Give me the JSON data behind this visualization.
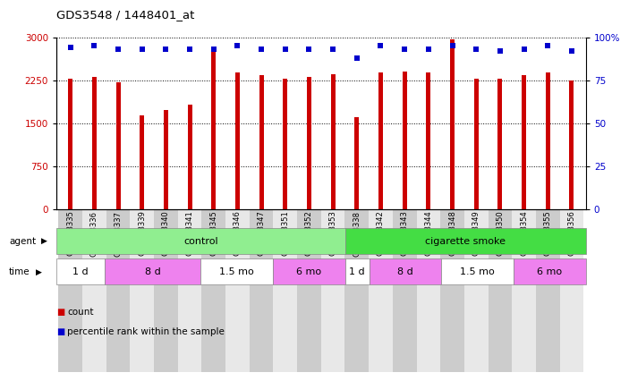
{
  "title": "GDS3548 / 1448401_at",
  "samples": [
    "GSM218335",
    "GSM218336",
    "GSM218337",
    "GSM218339",
    "GSM218340",
    "GSM218341",
    "GSM218345",
    "GSM218346",
    "GSM218347",
    "GSM218351",
    "GSM218352",
    "GSM218353",
    "GSM218338",
    "GSM218342",
    "GSM218343",
    "GSM218344",
    "GSM218348",
    "GSM218349",
    "GSM218350",
    "GSM218354",
    "GSM218355",
    "GSM218356"
  ],
  "counts": [
    2270,
    2310,
    2220,
    1640,
    1730,
    1820,
    2810,
    2380,
    2340,
    2280,
    2300,
    2350,
    1600,
    2390,
    2400,
    2380,
    2970,
    2270,
    2270,
    2330,
    2380,
    2250
  ],
  "percentile": [
    94,
    95,
    93,
    93,
    93,
    93,
    93,
    95,
    93,
    93,
    93,
    93,
    88,
    95,
    93,
    93,
    95,
    93,
    92,
    93,
    95,
    92
  ],
  "bar_color": "#cc0000",
  "dot_color": "#0000cc",
  "ylim_left": [
    0,
    3000
  ],
  "ylim_right": [
    0,
    100
  ],
  "yticks_left": [
    0,
    750,
    1500,
    2250,
    3000
  ],
  "yticks_right": [
    0,
    25,
    50,
    75,
    100
  ],
  "agent_groups": [
    {
      "label": "control",
      "start": 0,
      "end": 12,
      "color": "#90ee90"
    },
    {
      "label": "cigarette smoke",
      "start": 12,
      "end": 22,
      "color": "#44dd44"
    }
  ],
  "time_groups": [
    {
      "label": "1 d",
      "start": 0,
      "end": 2,
      "color": "#ffffff"
    },
    {
      "label": "8 d",
      "start": 2,
      "end": 6,
      "color": "#ee82ee"
    },
    {
      "label": "1.5 mo",
      "start": 6,
      "end": 9,
      "color": "#ffffff"
    },
    {
      "label": "6 mo",
      "start": 9,
      "end": 12,
      "color": "#ee82ee"
    },
    {
      "label": "1 d",
      "start": 12,
      "end": 13,
      "color": "#ffffff"
    },
    {
      "label": "8 d",
      "start": 13,
      "end": 16,
      "color": "#ee82ee"
    },
    {
      "label": "1.5 mo",
      "start": 16,
      "end": 19,
      "color": "#ffffff"
    },
    {
      "label": "6 mo",
      "start": 19,
      "end": 22,
      "color": "#ee82ee"
    }
  ],
  "legend_count_label": "count",
  "legend_pct_label": "percentile rank within the sample",
  "bg_color": "#ffffff",
  "tick_bg_color": "#cccccc",
  "agent_label": "agent",
  "time_label": "time"
}
